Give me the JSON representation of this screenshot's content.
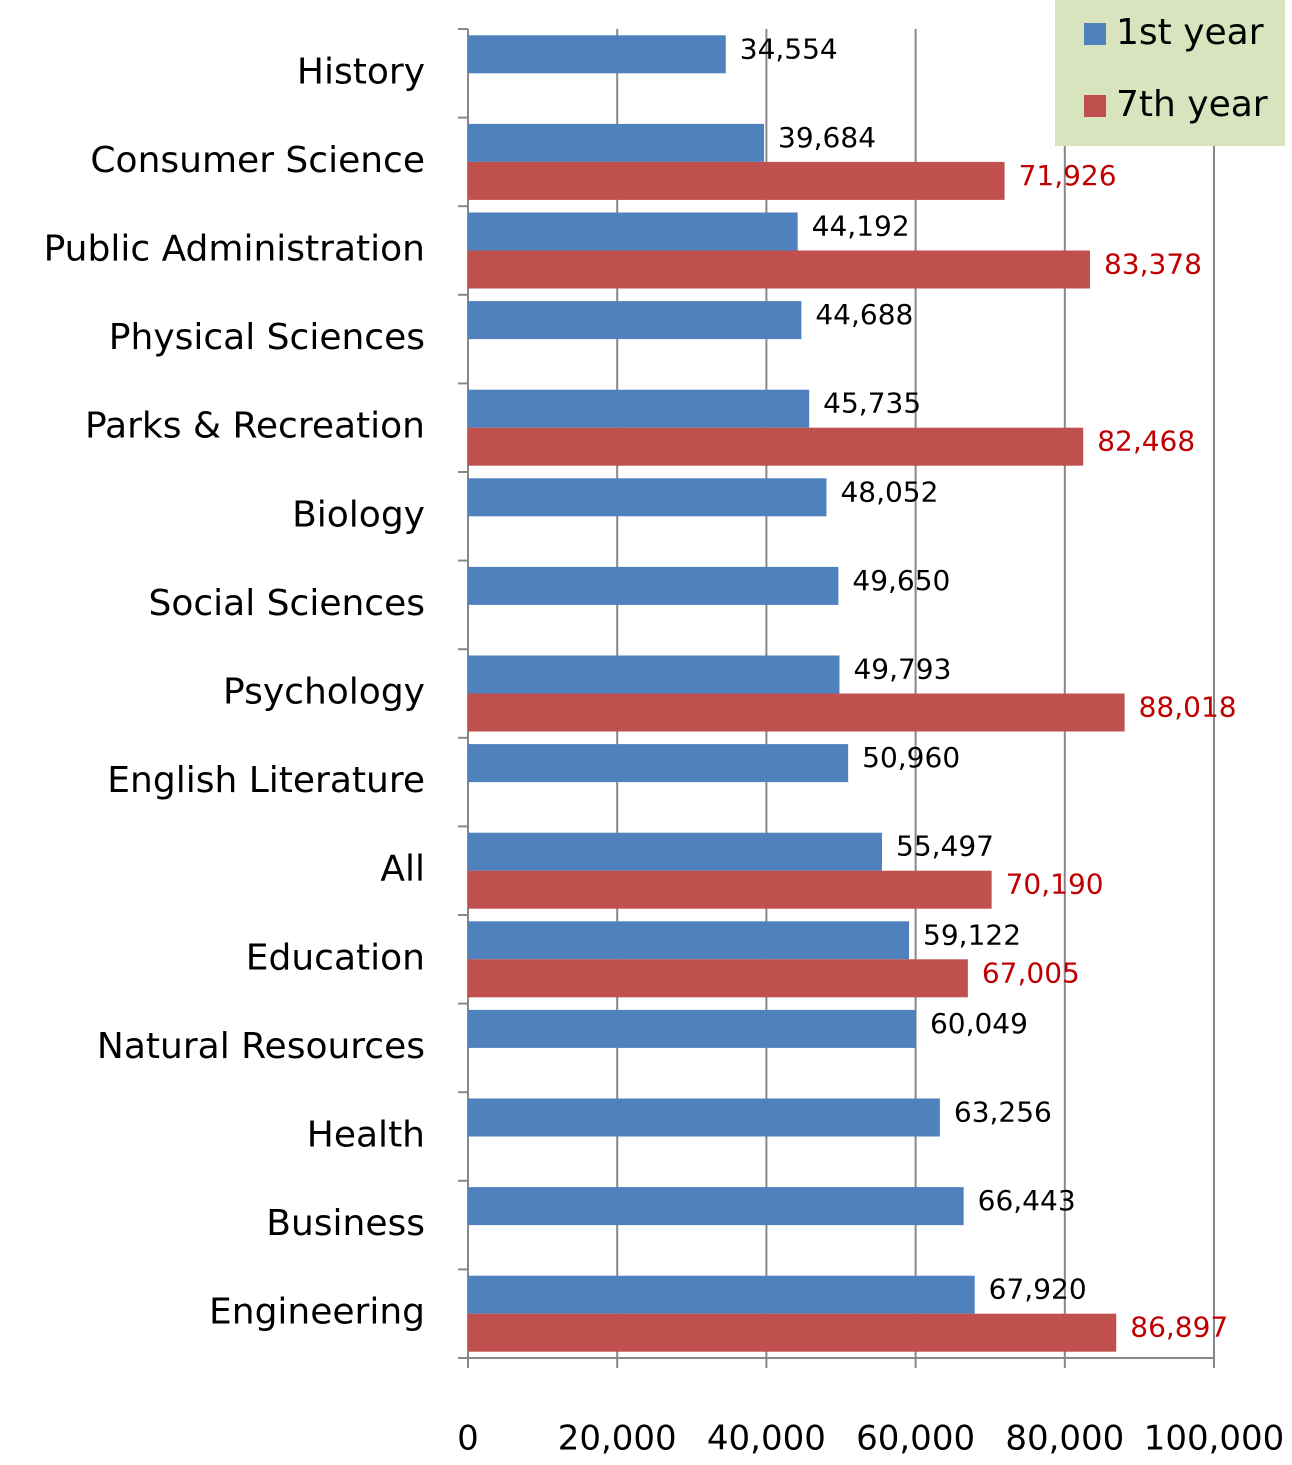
{
  "chart_data": {
    "type": "hbar",
    "categories": [
      "History",
      "Consumer Science",
      "Public Administration",
      "Physical Sciences",
      "Parks & Recreation",
      "Biology",
      "Social Sciences",
      "Psychology",
      "English Literature",
      "All",
      "Education",
      "Natural Resources",
      "Health",
      "Business",
      "Engineering"
    ],
    "series": [
      {
        "name": "1st year",
        "color": "#4f81bd",
        "label_color": "#000000",
        "values": [
          34554,
          39684,
          44192,
          44688,
          45735,
          48052,
          49650,
          49793,
          50960,
          55497,
          59122,
          60049,
          63256,
          66443,
          67920
        ],
        "value_labels": [
          "34,554",
          "39,684",
          "44,192",
          "44,688",
          "45,735",
          "48,052",
          "49,650",
          "49,793",
          "50,960",
          "55,497",
          "59,122",
          "60,049",
          "63,256",
          "66,443",
          "67,920"
        ]
      },
      {
        "name": "7th year",
        "color": "#c0504d",
        "label_color": "#c00000",
        "values": [
          null,
          71926,
          83378,
          null,
          82468,
          null,
          null,
          88018,
          null,
          70190,
          67005,
          null,
          null,
          null,
          86897
        ],
        "value_labels": [
          null,
          "71,926",
          "83,378",
          null,
          "82,468",
          null,
          null,
          "88,018",
          null,
          "70,190",
          "67,005",
          null,
          null,
          null,
          "86,897"
        ]
      }
    ],
    "xlim": [
      0,
      100000
    ],
    "xticks": [
      0,
      {
        "value": 20000,
        "label": "20,000"
      },
      {
        "value": 40000,
        "label": "40,000"
      },
      {
        "value": 60000,
        "label": "60,000"
      },
      {
        "value": 80000,
        "label": "80,000"
      },
      {
        "value": 100000,
        "label": "100,000"
      }
    ],
    "grid": true,
    "legend": "top-right"
  }
}
